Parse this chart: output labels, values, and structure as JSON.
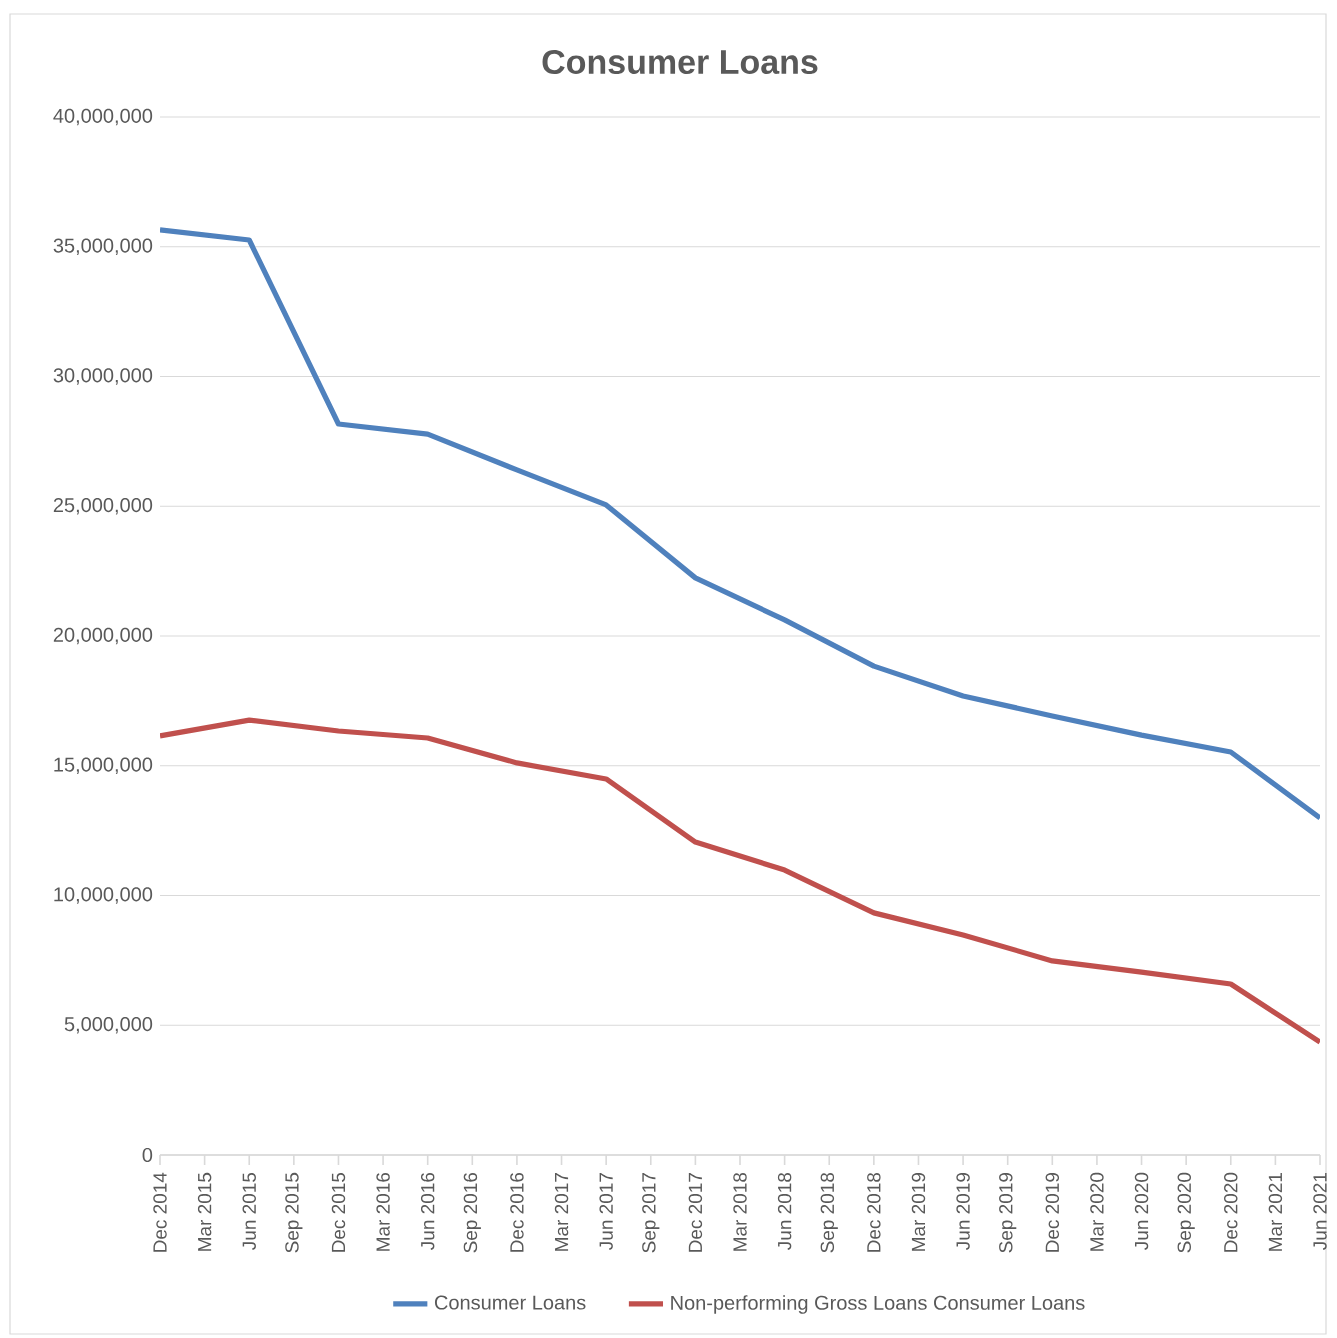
{
  "chart_data": {
    "type": "line",
    "title": "Consumer Loans",
    "categories": [
      "Dec 2014",
      "Mar 2015",
      "Jun 2015",
      "Sep 2015",
      "Dec 2015",
      "Mar 2016",
      "Jun 2016",
      "Sep 2016",
      "Dec 2016",
      "Mar 2017",
      "Jun 2017",
      "Sep 2017",
      "Dec 2017",
      "Mar 2018",
      "Jun 2018",
      "Sep 2018",
      "Dec 2018",
      "Mar 2019",
      "Jun 2019",
      "Sep 2019",
      "Dec 2019",
      "Mar 2020",
      "Jun 2020",
      "Sep 2020",
      "Dec 2020",
      "Mar 2021",
      "Jun 2021"
    ],
    "series": [
      {
        "name": "Consumer Loans",
        "color": "#4f81bd",
        "values": [
          35650000,
          null,
          35260000,
          null,
          28170000,
          null,
          27780000,
          null,
          26400000,
          null,
          25050000,
          null,
          22240000,
          null,
          20620000,
          null,
          18840000,
          null,
          17690000,
          null,
          16920000,
          null,
          16180000,
          null,
          15530000,
          null,
          12990000
        ]
      },
      {
        "name": "Non-performing Gross Loans Consumer Loans",
        "color": "#c0504d",
        "values": [
          16150000,
          null,
          16760000,
          null,
          16340000,
          null,
          16070000,
          null,
          15110000,
          null,
          14490000,
          null,
          12060000,
          null,
          10980000,
          null,
          9330000,
          null,
          8480000,
          null,
          7480000,
          null,
          7050000,
          null,
          6590000,
          null,
          4350000
        ]
      }
    ],
    "ylim": [
      0,
      40000000
    ],
    "yticks": [
      0,
      {
        "value": 5000000,
        "label": "5,000,000"
      },
      {
        "value": 10000000,
        "label": "10,000,000"
      },
      {
        "value": 15000000,
        "label": "15,000,000"
      },
      {
        "value": 20000000,
        "label": "20,000,000"
      },
      {
        "value": 25000000,
        "label": "25,000,000"
      },
      {
        "value": 30000000,
        "label": "30,000,000"
      },
      {
        "value": 35000000,
        "label": "35,000,000"
      },
      {
        "value": 40000000,
        "label": "40,000,000"
      }
    ],
    "grid": "y",
    "legend": "bottom",
    "marker": "none",
    "line_style": "solid"
  }
}
